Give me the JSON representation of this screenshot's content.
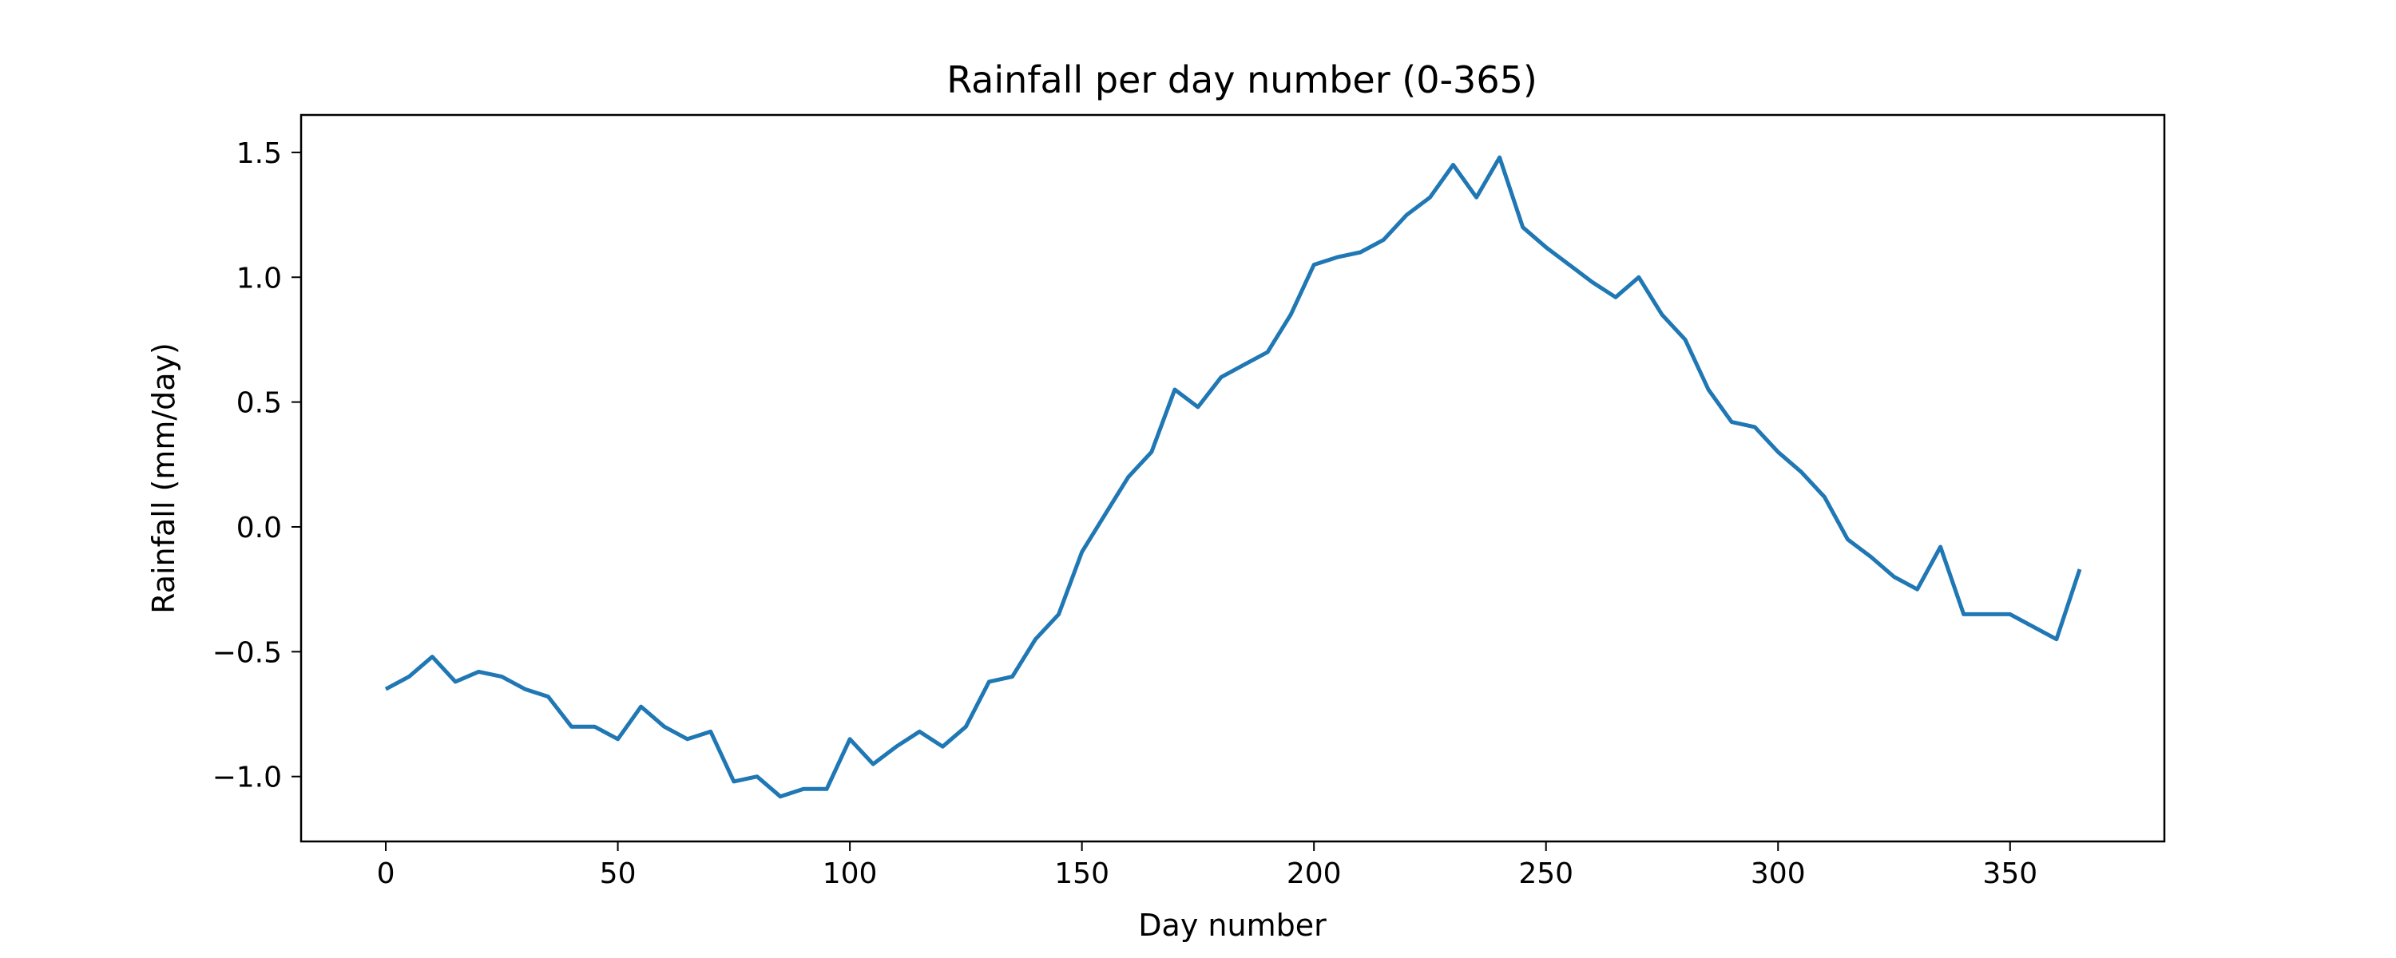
{
  "chart_data": {
    "type": "line",
    "title": "Rainfall per day number (0-365)",
    "xlabel": "Day number",
    "ylabel": "Rainfall (mm/day)",
    "xlim": [
      -18.25,
      383.25
    ],
    "ylim": [
      -1.26,
      1.65
    ],
    "x_ticks": [
      0,
      50,
      100,
      150,
      200,
      250,
      300,
      350
    ],
    "x_tick_labels": [
      "0",
      "50",
      "100",
      "150",
      "200",
      "250",
      "300",
      "350"
    ],
    "y_ticks": [
      -1.0,
      -0.5,
      0.0,
      0.5,
      1.0,
      1.5
    ],
    "y_tick_labels": [
      "−1.0",
      "−0.5",
      "0.0",
      "0.5",
      "1.0",
      "1.5"
    ],
    "grid": false,
    "legend": "none",
    "series": [
      {
        "color": "#1f77b4",
        "x": [
          0,
          5,
          10,
          15,
          20,
          25,
          30,
          35,
          40,
          45,
          50,
          55,
          60,
          65,
          70,
          75,
          80,
          85,
          90,
          95,
          100,
          105,
          110,
          115,
          120,
          125,
          130,
          135,
          140,
          145,
          150,
          155,
          160,
          165,
          170,
          175,
          180,
          185,
          190,
          195,
          200,
          205,
          210,
          215,
          220,
          225,
          230,
          235,
          240,
          245,
          250,
          255,
          260,
          265,
          270,
          275,
          280,
          285,
          290,
          295,
          300,
          305,
          310,
          315,
          320,
          325,
          330,
          335,
          340,
          345,
          350,
          355,
          360,
          365
        ],
        "y": [
          -0.65,
          -0.6,
          -0.52,
          -0.62,
          -0.58,
          -0.6,
          -0.65,
          -0.68,
          -0.8,
          -0.8,
          -0.85,
          -0.72,
          -0.8,
          -0.85,
          -0.82,
          -1.02,
          -1.0,
          -1.08,
          -1.05,
          -1.05,
          -0.85,
          -0.95,
          -0.88,
          -0.82,
          -0.88,
          -0.8,
          -0.62,
          -0.6,
          -0.45,
          -0.35,
          -0.1,
          0.05,
          0.2,
          0.3,
          0.55,
          0.48,
          0.6,
          0.65,
          0.7,
          0.85,
          1.05,
          1.08,
          1.1,
          1.15,
          1.25,
          1.32,
          1.45,
          1.32,
          1.48,
          1.2,
          1.12,
          1.05,
          0.98,
          0.92,
          1.0,
          0.85,
          0.75,
          0.55,
          0.42,
          0.4,
          0.3,
          0.22,
          0.12,
          -0.05,
          -0.12,
          -0.2,
          -0.25,
          -0.08,
          -0.35,
          -0.35,
          -0.35,
          -0.4,
          -0.45,
          -0.17
        ]
      }
    ]
  }
}
